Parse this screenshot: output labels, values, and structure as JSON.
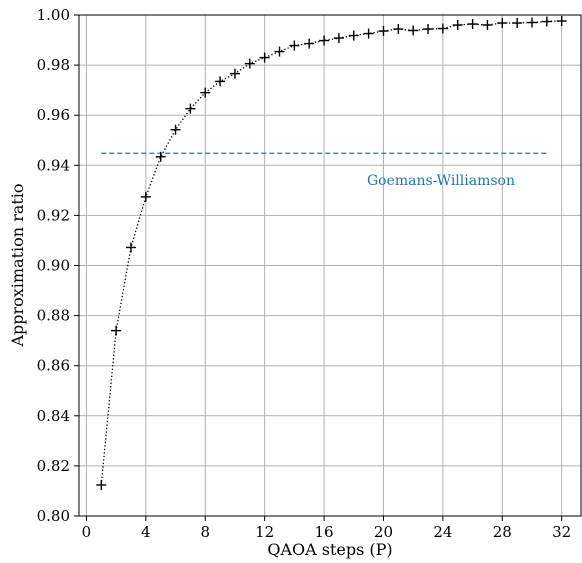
{
  "chart_data": {
    "type": "scatter",
    "title": "",
    "xlabel": "QAOA steps (P)",
    "ylabel": "Approximation ratio",
    "xlim": [
      -0.5,
      33.3
    ],
    "ylim": [
      0.8,
      1.0
    ],
    "xticks": [
      0,
      4,
      8,
      12,
      16,
      20,
      24,
      28,
      32
    ],
    "yticks": [
      0.8,
      0.82,
      0.84,
      0.86,
      0.88,
      0.9,
      0.92,
      0.94,
      0.96,
      0.98,
      1.0
    ],
    "xtick_labels": [
      "0",
      "4",
      "8",
      "12",
      "16",
      "20",
      "24",
      "28",
      "32"
    ],
    "ytick_labels": [
      "0.80",
      "0.82",
      "0.84",
      "0.86",
      "0.88",
      "0.90",
      "0.92",
      "0.94",
      "0.96",
      "0.98",
      "1.00"
    ],
    "grid": true,
    "series": [
      {
        "marker": "plus",
        "line_style": "dotted",
        "color": "#000000",
        "x": [
          1,
          2,
          3,
          4,
          5,
          6,
          7,
          8,
          9,
          10,
          11,
          12,
          13,
          14,
          15,
          16,
          17,
          18,
          19,
          20,
          21,
          22,
          23,
          24,
          25,
          26,
          27,
          28,
          29,
          30,
          31,
          32
        ],
        "y": [
          0.8124,
          0.874,
          0.9072,
          0.9274,
          0.9434,
          0.9542,
          0.9626,
          0.969,
          0.9735,
          0.9766,
          0.9806,
          0.983,
          0.9854,
          0.9878,
          0.9886,
          0.9898,
          0.9908,
          0.9918,
          0.9926,
          0.9936,
          0.9944,
          0.9938,
          0.9944,
          0.9946,
          0.996,
          0.9964,
          0.996,
          0.9968,
          0.9968,
          0.997,
          0.9974,
          0.9976
        ]
      }
    ],
    "reference_line": {
      "label": "Goemans-Williamson",
      "y": 0.9448,
      "x_start": 1,
      "x_end": 31,
      "color": "#1f77b4",
      "line_style": "dashed"
    }
  }
}
